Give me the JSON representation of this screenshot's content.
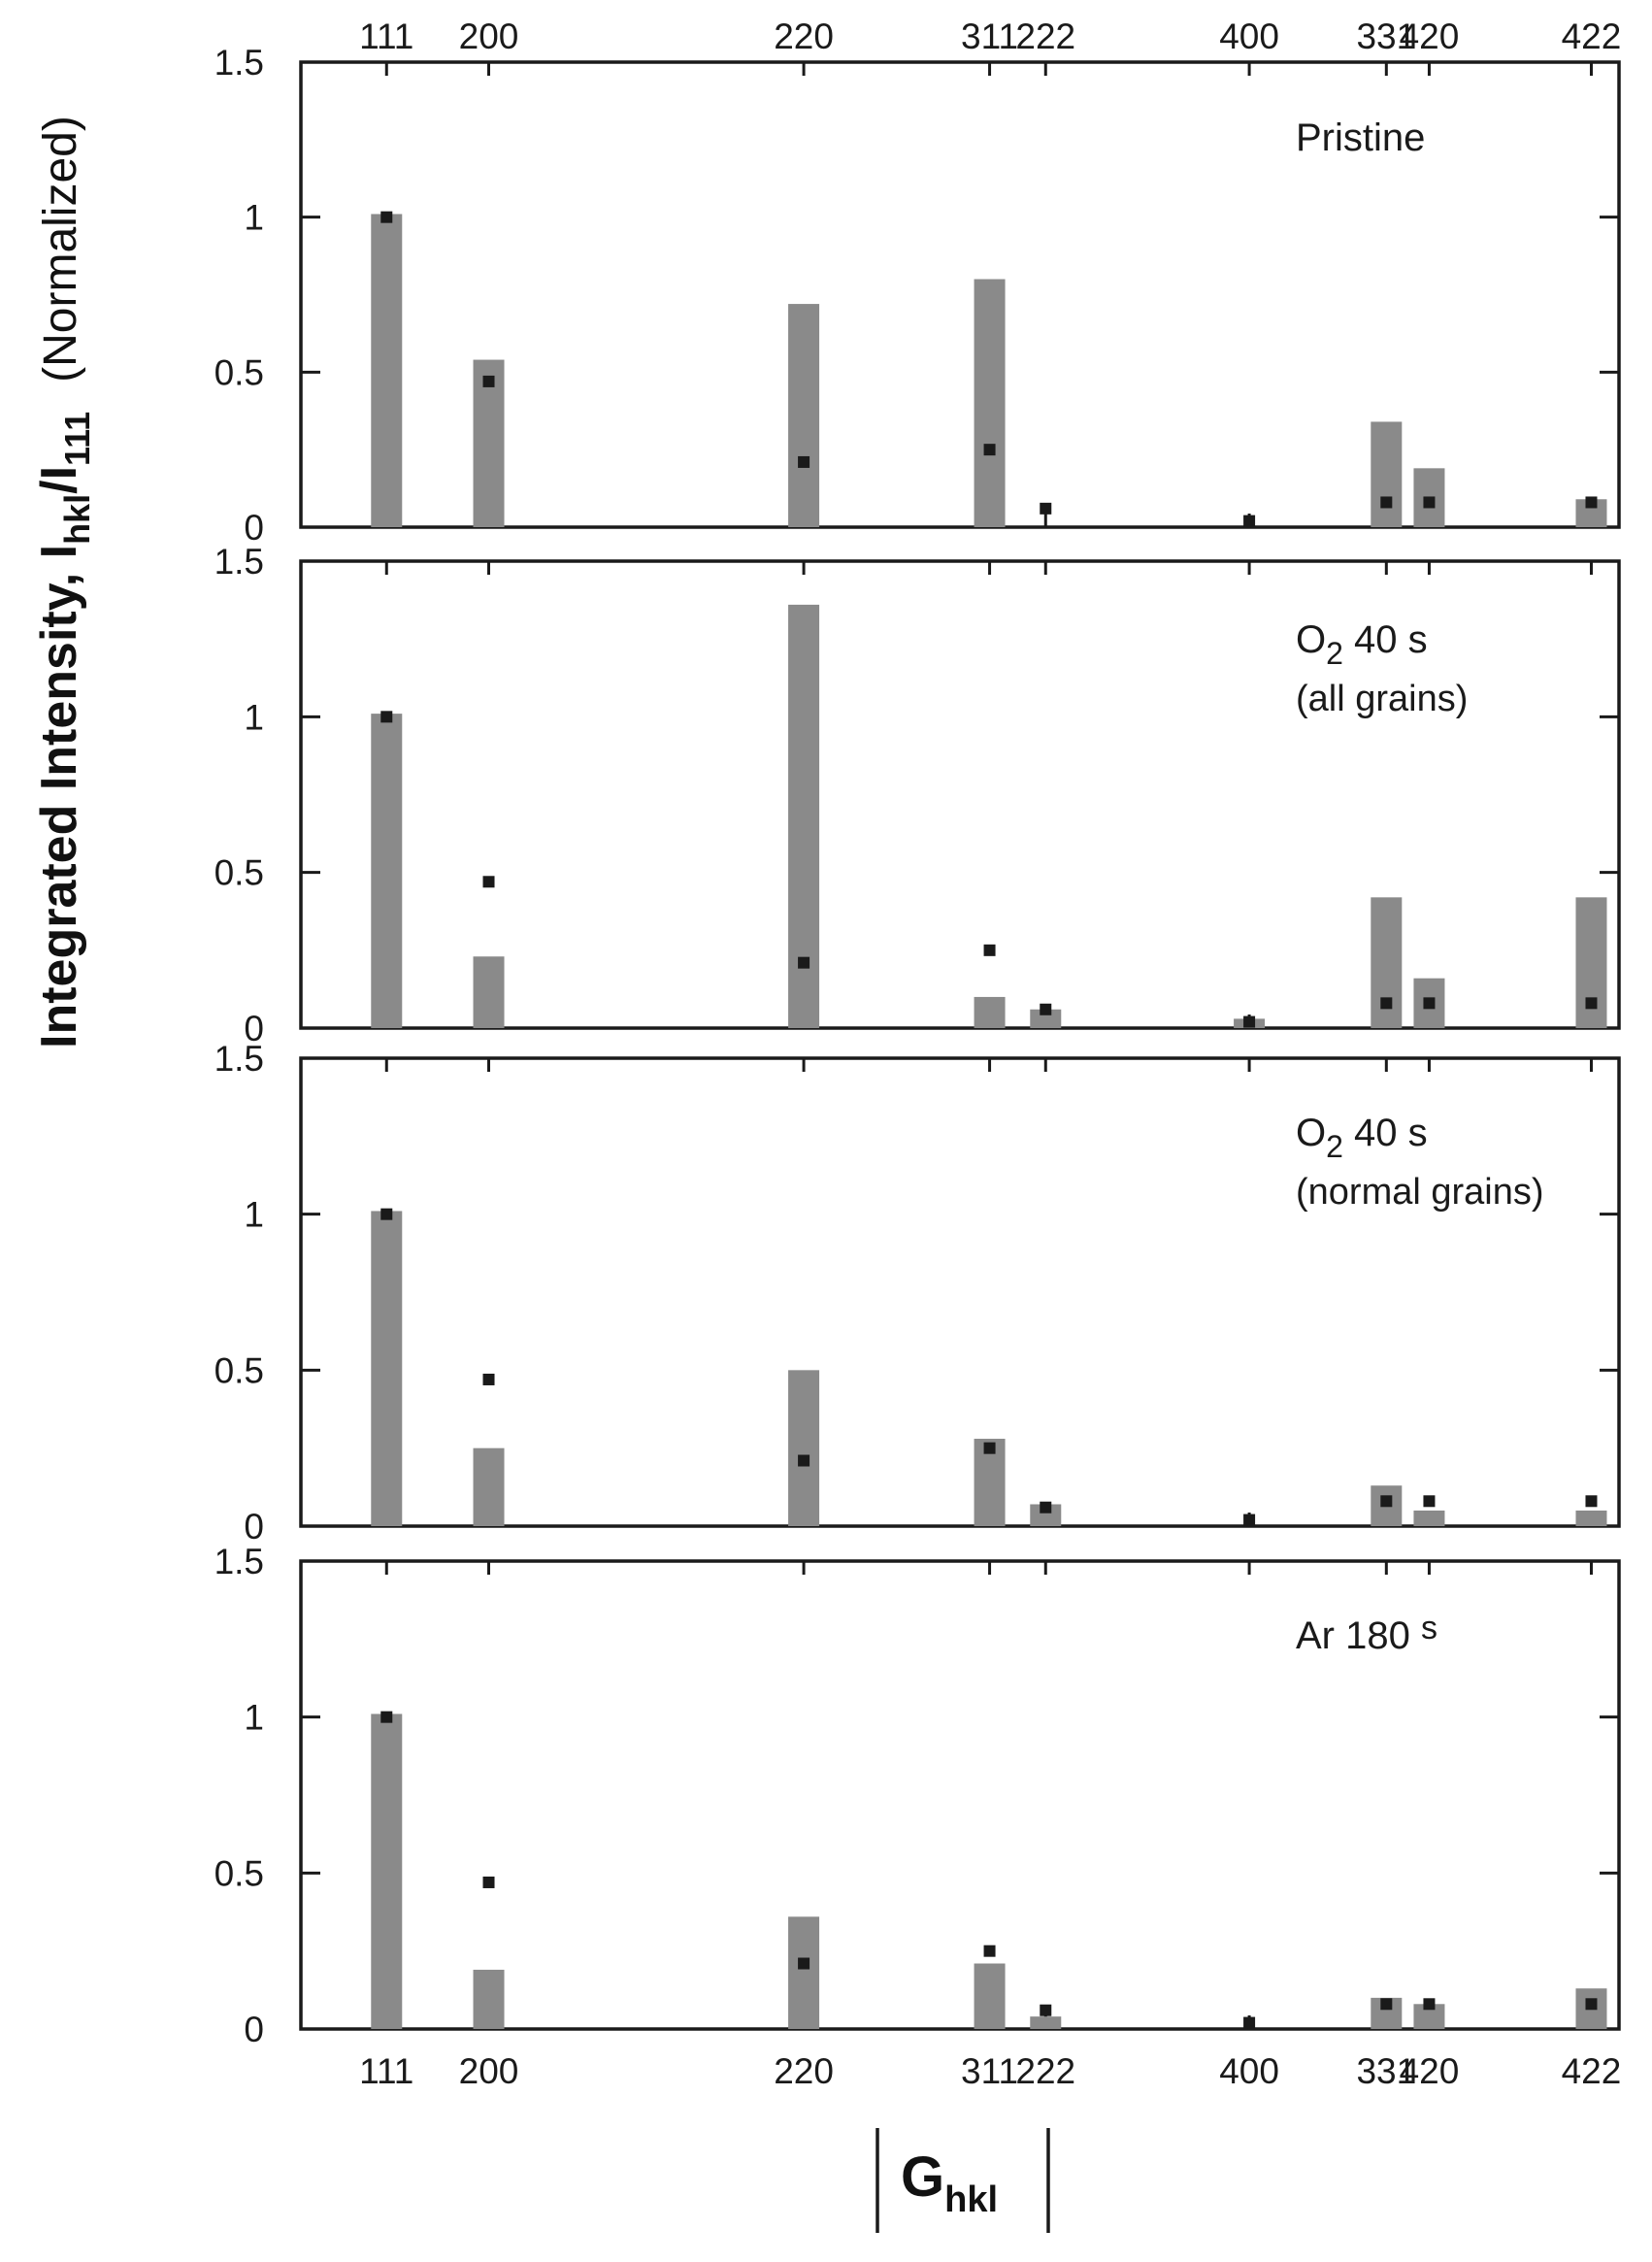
{
  "chart_data": {
    "type": "bar",
    "categories": [
      "111",
      "200",
      "220",
      "311",
      "222",
      "400",
      "331",
      "420",
      "422"
    ],
    "x_positions": [
      1.0,
      1.155,
      1.633,
      1.915,
      2.0,
      2.309,
      2.517,
      2.582,
      2.828
    ],
    "xlim": [
      0.87,
      2.87
    ],
    "ylim": [
      0,
      1.5
    ],
    "y_ticks": [
      "0",
      "0.5",
      "1",
      "1.5"
    ],
    "ylabel": {
      "main": "Integrated Intensity, I",
      "sub": "hkl",
      "divider": "/I",
      "sub2": "111",
      "suffix": "(Normalized)"
    },
    "xlabel": {
      "main": "G",
      "sub": "hkl"
    },
    "reference": {
      "name": "reference",
      "values": [
        1.0,
        0.47,
        0.21,
        0.25,
        0.06,
        0.02,
        0.08,
        0.08,
        0.08
      ]
    },
    "panels": [
      {
        "label": [
          "Pristine"
        ],
        "values": [
          1.01,
          0.54,
          0.72,
          0.8,
          0.0,
          0.0,
          0.34,
          0.19,
          0.09
        ]
      },
      {
        "label": [
          "O",
          "2",
          " 40 s",
          "(all grains)"
        ],
        "values": [
          1.01,
          0.23,
          1.36,
          0.1,
          0.06,
          0.03,
          0.42,
          0.16,
          0.42
        ]
      },
      {
        "label": [
          "O",
          "2",
          " 40 s",
          "(normal grains)"
        ],
        "values": [
          1.01,
          0.25,
          0.5,
          0.28,
          0.07,
          0.0,
          0.13,
          0.05,
          0.05
        ]
      },
      {
        "label": [
          "Ar 180 ",
          "s"
        ],
        "values": [
          1.01,
          0.19,
          0.36,
          0.21,
          0.04,
          0.0,
          0.1,
          0.08,
          0.13
        ]
      }
    ]
  }
}
